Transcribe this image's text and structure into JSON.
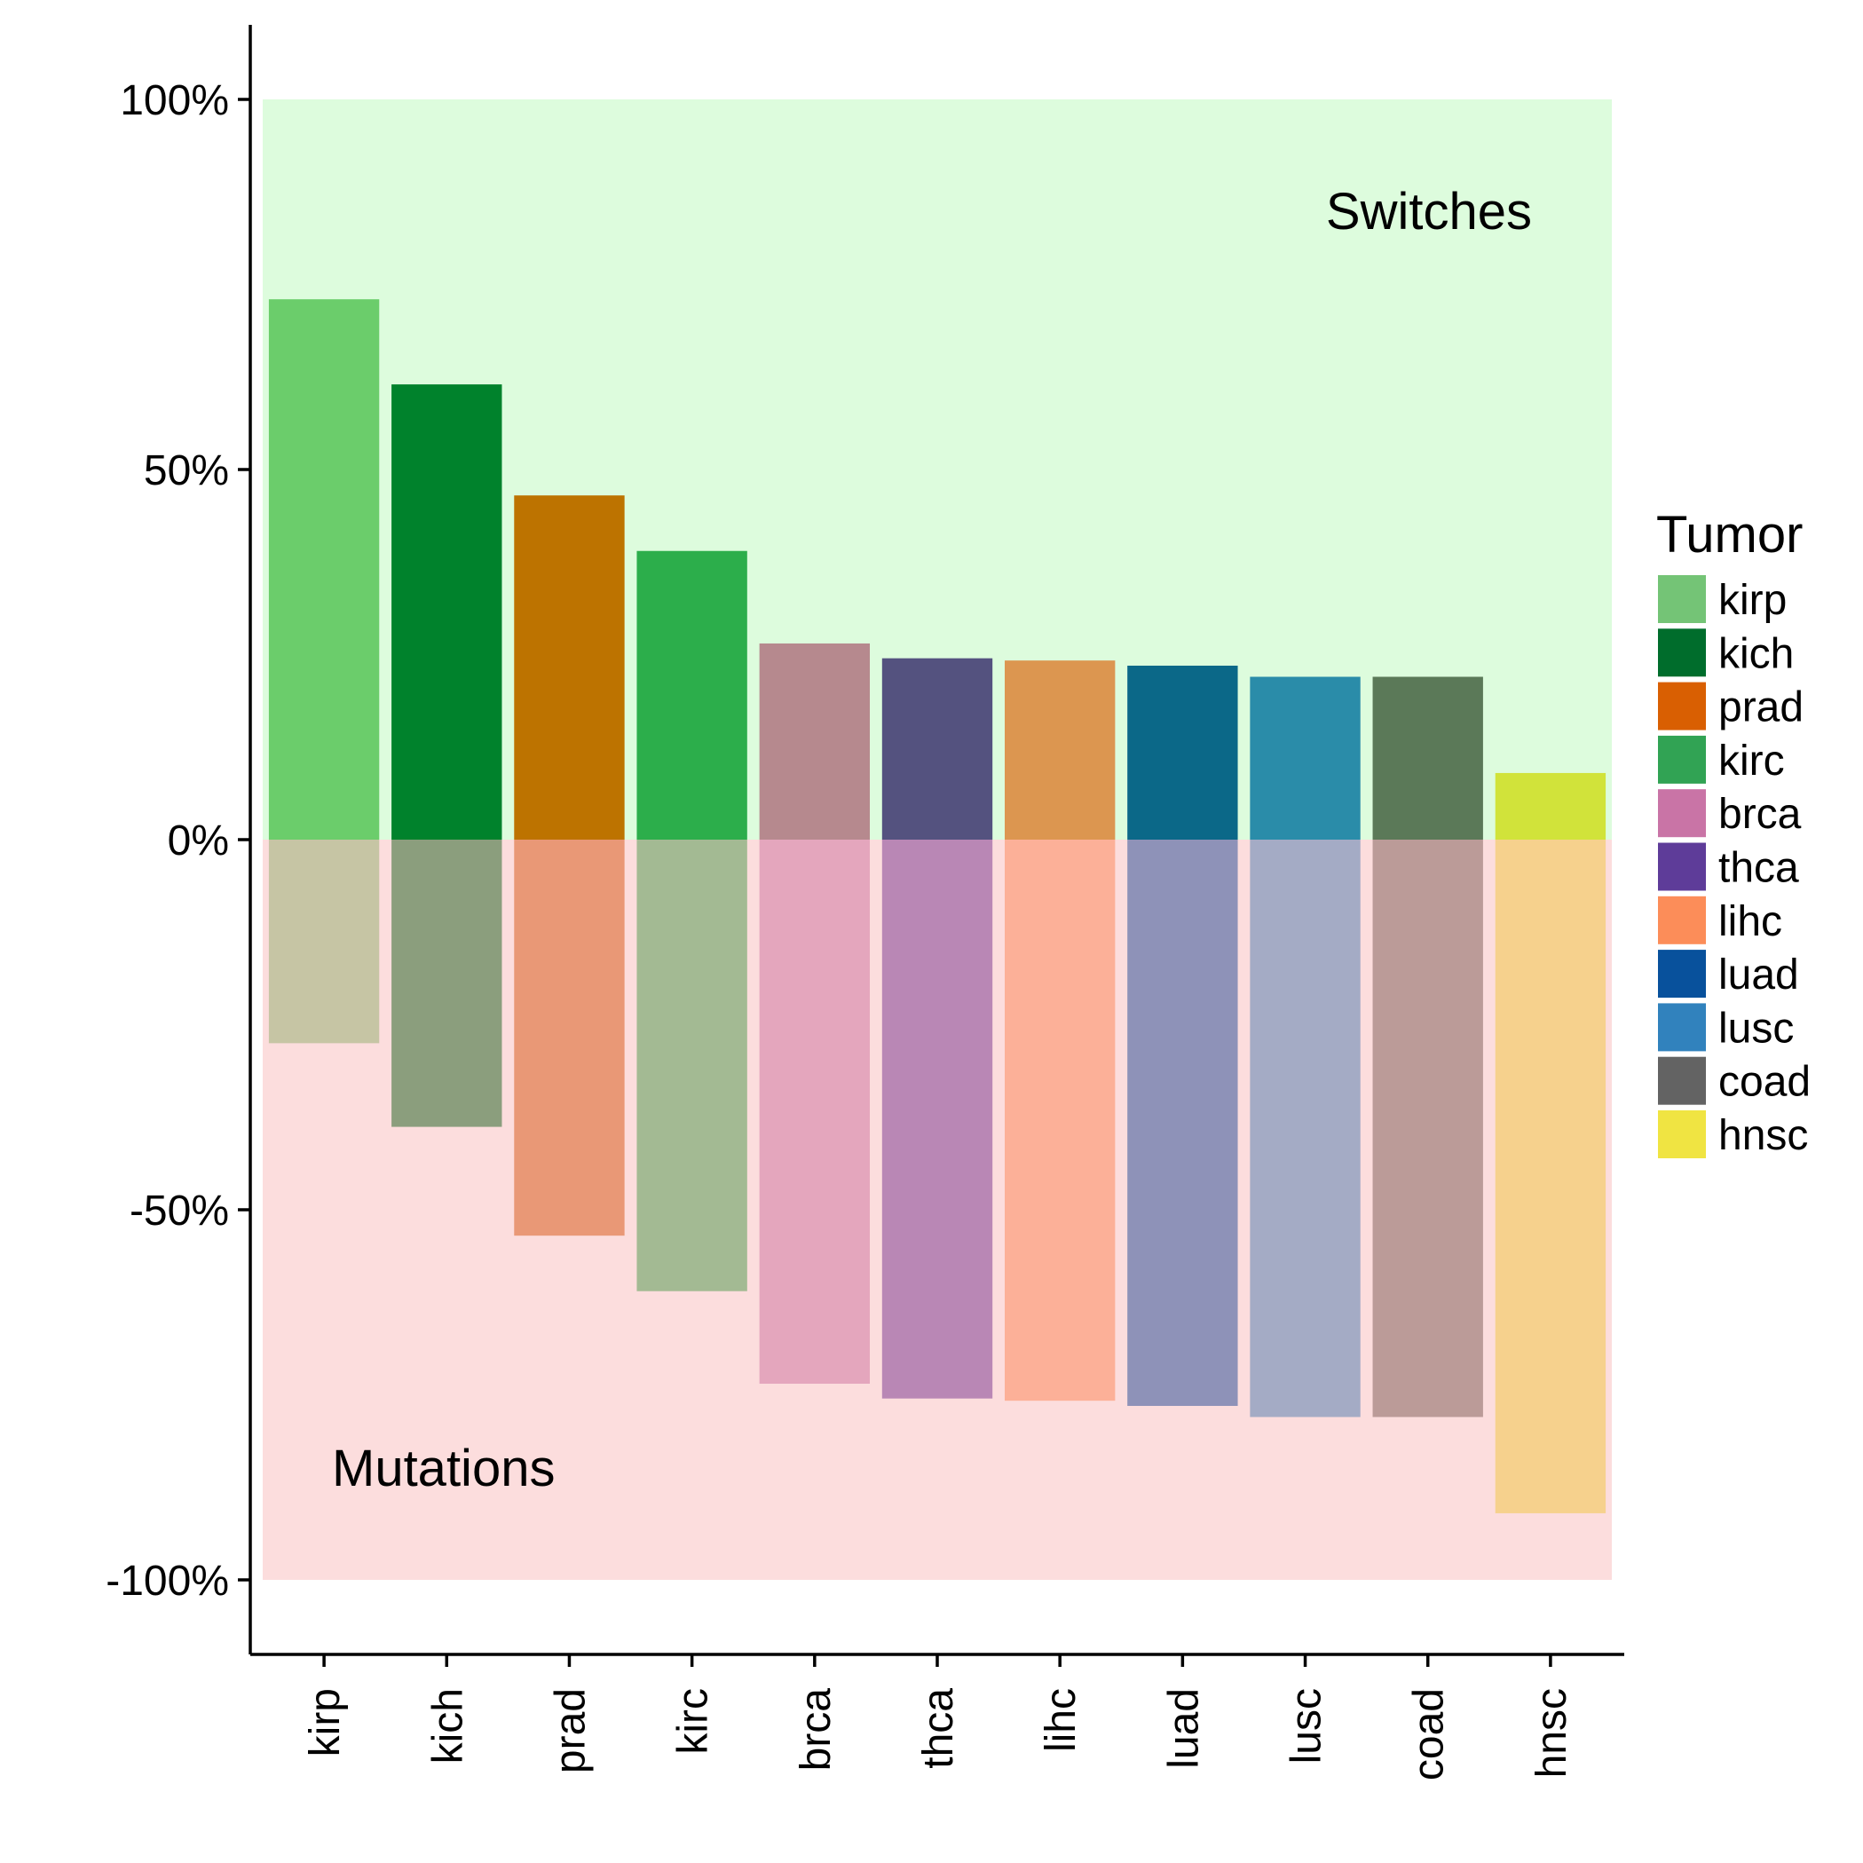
{
  "chart_data": {
    "type": "bar",
    "categories": [
      "kirp",
      "kich",
      "prad",
      "kirc",
      "brca",
      "thca",
      "lihc",
      "luad",
      "lusc",
      "coad",
      "hnsc"
    ],
    "series": [
      {
        "values": [
          73,
          61.5,
          46.5,
          39,
          26.5,
          24.5,
          24.2,
          23.5,
          22,
          22,
          9
        ],
        "colors": [
          "#6bcd6b",
          "#00822c",
          "#bd7300",
          "#2cae4b",
          "#b6898e",
          "#54527f",
          "#dc9650",
          "#0b6888",
          "#2a8ca9",
          "#5b7958",
          "#d1e33a"
        ]
      },
      {
        "values": [
          -27.5,
          -38.8,
          -53.5,
          -61,
          -73.5,
          -75.5,
          -75.8,
          -76.5,
          -78,
          -78,
          -91
        ],
        "colors": [
          "#c6c5a4",
          "#8b9e7d",
          "#e99876",
          "#a3ba93",
          "#e4a6bd",
          "#b987b5",
          "#fcb098",
          "#8e92b8",
          "#a4abc5",
          "#bb9b98",
          "#f6d18d"
        ]
      }
    ],
    "ylim": [
      -110,
      110
    ],
    "yticks": [
      {
        "value": 100,
        "label": "100%"
      },
      {
        "value": 50,
        "label": "50%"
      },
      {
        "value": 0,
        "label": "0%"
      },
      {
        "value": -50,
        "label": "-50%"
      },
      {
        "value": -100,
        "label": "-100%"
      }
    ],
    "background_bands": [
      {
        "from": 0,
        "to": 100,
        "color": "#ddfcdd"
      },
      {
        "from": -100,
        "to": 0,
        "color": "#fcdddd"
      }
    ],
    "annotations": [
      {
        "text": "Switches",
        "position": "top-right"
      },
      {
        "text": "Mutations",
        "position": "bottom-left"
      }
    ],
    "legend": {
      "title": "Tumor",
      "placement": "right",
      "items": [
        {
          "label": "kirp",
          "color": "#74c476"
        },
        {
          "label": "kich",
          "color": "#006d2c"
        },
        {
          "label": "prad",
          "color": "#d95f02"
        },
        {
          "label": "kirc",
          "color": "#31a354"
        },
        {
          "label": "brca",
          "color": "#c974a6"
        },
        {
          "label": "thca",
          "color": "#5e3c99"
        },
        {
          "label": "lihc",
          "color": "#fc8d59"
        },
        {
          "label": "luad",
          "color": "#08519c"
        },
        {
          "label": "lusc",
          "color": "#3182bd"
        },
        {
          "label": "coad",
          "color": "#636363"
        },
        {
          "label": "hnsc",
          "color": "#f0e442"
        }
      ]
    },
    "grid": false
  }
}
